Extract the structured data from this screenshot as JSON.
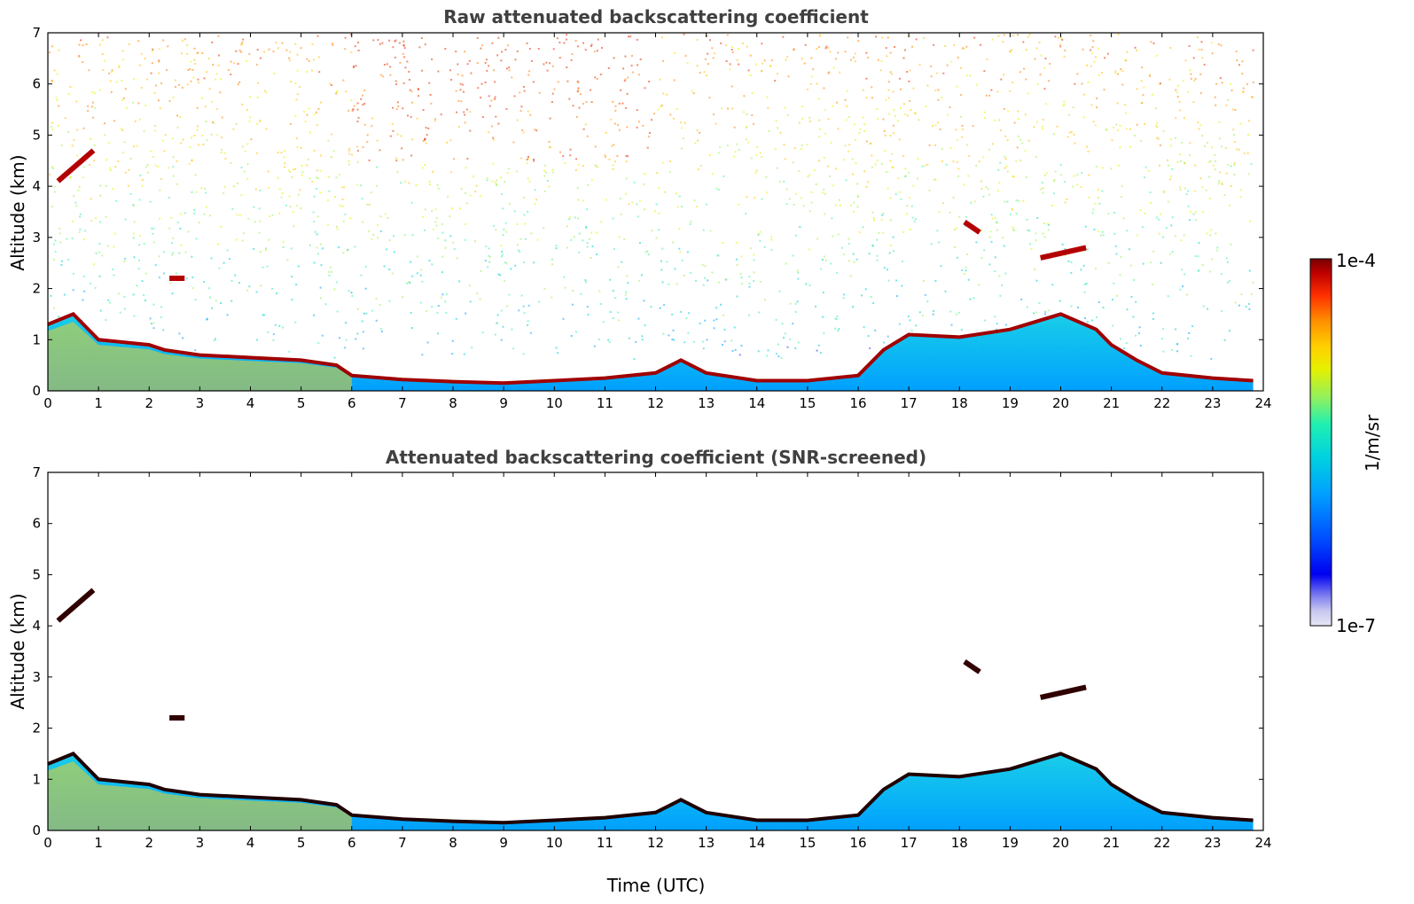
{
  "chart_data": [
    {
      "type": "heatmap",
      "title": "Raw attenuated backscattering coefficient",
      "xlabel": "",
      "ylabel": "Altitude (km)",
      "xlim": [
        0,
        24
      ],
      "ylim": [
        0,
        7
      ],
      "x_ticks": [
        0,
        1,
        2,
        3,
        4,
        5,
        6,
        7,
        8,
        9,
        10,
        11,
        12,
        13,
        14,
        15,
        16,
        17,
        18,
        19,
        20,
        21,
        22,
        23,
        24
      ],
      "y_ticks": [
        0,
        1,
        2,
        3,
        4,
        5,
        6,
        7
      ],
      "noise_background": true,
      "boundary_layer_top_km": [
        [
          0,
          1.3
        ],
        [
          0.5,
          1.5
        ],
        [
          1,
          1.0
        ],
        [
          2,
          0.9
        ],
        [
          2.3,
          0.8
        ],
        [
          3,
          0.7
        ],
        [
          4,
          0.65
        ],
        [
          5,
          0.6
        ],
        [
          5.7,
          0.5
        ],
        [
          6,
          0.3
        ],
        [
          7,
          0.22
        ],
        [
          8,
          0.18
        ],
        [
          9,
          0.15
        ],
        [
          10,
          0.2
        ],
        [
          11,
          0.25
        ],
        [
          12,
          0.35
        ],
        [
          12.5,
          0.6
        ],
        [
          13,
          0.35
        ],
        [
          14,
          0.2
        ],
        [
          15,
          0.2
        ],
        [
          16,
          0.3
        ],
        [
          16.5,
          0.8
        ],
        [
          17,
          1.1
        ],
        [
          18,
          1.05
        ],
        [
          19,
          1.2
        ],
        [
          20,
          1.5
        ],
        [
          20.7,
          1.2
        ],
        [
          21,
          0.9
        ],
        [
          21.5,
          0.6
        ],
        [
          22,
          0.35
        ],
        [
          23,
          0.25
        ],
        [
          23.8,
          0.2
        ]
      ],
      "cloud_features": [
        {
          "t_start": 0.2,
          "t_end": 0.9,
          "alt_start_km": 4.1,
          "alt_end_km": 4.7
        },
        {
          "t_start": 2.4,
          "t_end": 2.7,
          "alt_start_km": 2.2,
          "alt_end_km": 2.2
        },
        {
          "t_start": 18.1,
          "t_end": 18.4,
          "alt_start_km": 3.3,
          "alt_end_km": 3.1
        },
        {
          "t_start": 19.6,
          "t_end": 20.5,
          "alt_start_km": 2.6,
          "alt_end_km": 2.8
        }
      ]
    },
    {
      "type": "heatmap",
      "title": "Attenuated backscattering coefficient (SNR-screened)",
      "xlabel": "Time (UTC)",
      "ylabel": "Altitude (km)",
      "xlim": [
        0,
        24
      ],
      "ylim": [
        0,
        7
      ],
      "x_ticks": [
        0,
        1,
        2,
        3,
        4,
        5,
        6,
        7,
        8,
        9,
        10,
        11,
        12,
        13,
        14,
        15,
        16,
        17,
        18,
        19,
        20,
        21,
        22,
        23,
        24
      ],
      "y_ticks": [
        0,
        1,
        2,
        3,
        4,
        5,
        6,
        7
      ],
      "noise_background": false,
      "boundary_layer_top_km": [
        [
          0,
          1.3
        ],
        [
          0.5,
          1.5
        ],
        [
          1,
          1.0
        ],
        [
          2,
          0.9
        ],
        [
          2.3,
          0.8
        ],
        [
          3,
          0.7
        ],
        [
          4,
          0.65
        ],
        [
          5,
          0.6
        ],
        [
          5.7,
          0.5
        ],
        [
          6,
          0.3
        ],
        [
          7,
          0.22
        ],
        [
          8,
          0.18
        ],
        [
          9,
          0.15
        ],
        [
          10,
          0.2
        ],
        [
          11,
          0.25
        ],
        [
          12,
          0.35
        ],
        [
          12.5,
          0.6
        ],
        [
          13,
          0.35
        ],
        [
          14,
          0.2
        ],
        [
          15,
          0.2
        ],
        [
          16,
          0.3
        ],
        [
          16.5,
          0.8
        ],
        [
          17,
          1.1
        ],
        [
          18,
          1.05
        ],
        [
          19,
          1.2
        ],
        [
          20,
          1.5
        ],
        [
          20.7,
          1.2
        ],
        [
          21,
          0.9
        ],
        [
          21.5,
          0.6
        ],
        [
          22,
          0.35
        ],
        [
          23,
          0.25
        ],
        [
          23.8,
          0.2
        ]
      ],
      "cloud_features": [
        {
          "t_start": 0.2,
          "t_end": 0.9,
          "alt_start_km": 4.1,
          "alt_end_km": 4.7
        },
        {
          "t_start": 2.4,
          "t_end": 2.7,
          "alt_start_km": 2.2,
          "alt_end_km": 2.2
        },
        {
          "t_start": 18.1,
          "t_end": 18.4,
          "alt_start_km": 3.3,
          "alt_end_km": 3.1
        },
        {
          "t_start": 19.6,
          "t_end": 20.5,
          "alt_start_km": 2.6,
          "alt_end_km": 2.8
        }
      ]
    }
  ],
  "colorbar": {
    "label": "1/m/sr",
    "max_label": "1e-4",
    "min_label": "1e-7",
    "colors": [
      "#e6e6f5",
      "#c8c8f0",
      "#9696f0",
      "#5050f0",
      "#0000f0",
      "#0050ff",
      "#00a0ff",
      "#00c8e6",
      "#00e0c0",
      "#40f0a0",
      "#a0f050",
      "#e6f000",
      "#ffd200",
      "#ffa000",
      "#ff6400",
      "#e60000",
      "#a00000",
      "#780000"
    ]
  }
}
